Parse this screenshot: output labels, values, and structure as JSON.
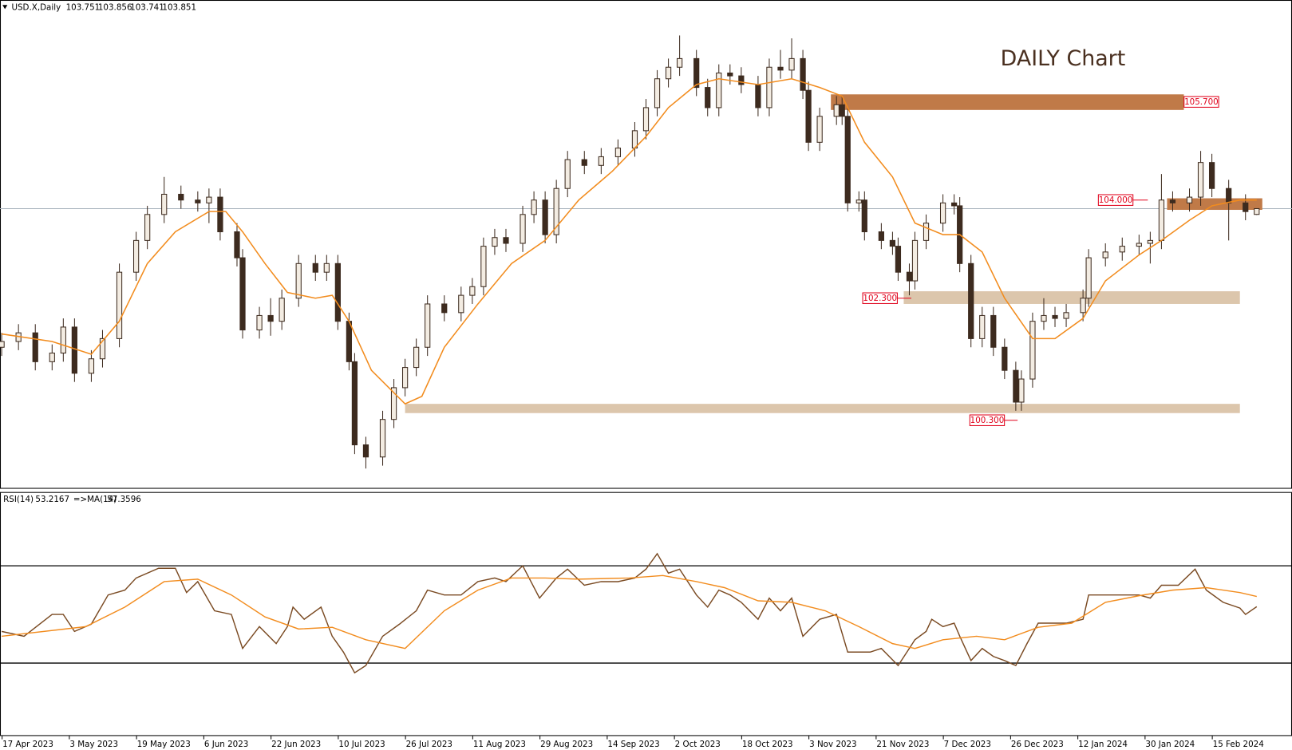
{
  "chart_data": [
    {
      "type": "candlestick",
      "symbol": "USD.X,Daily",
      "last_ohlc": [
        103.751,
        103.856,
        103.741,
        103.851
      ],
      "annotation": "DAILY Chart",
      "xlim": [
        -0.3,
        230.3
      ],
      "ylim": [
        99.0,
        107.45
      ],
      "up_color": "#f3ece2",
      "down_color": "#3d2b1f",
      "line_color": "#a9b4bd",
      "x": [
        0,
        3,
        6,
        9,
        11,
        13,
        16,
        18,
        21,
        24,
        26,
        29,
        32,
        35,
        37,
        39,
        42,
        43,
        46,
        48,
        50,
        53,
        56,
        58,
        60,
        62,
        63,
        65,
        68,
        70,
        72,
        74,
        76,
        79,
        82,
        84,
        86,
        88,
        90,
        93,
        95,
        97,
        99,
        101,
        104,
        107,
        110,
        113,
        115,
        117,
        119,
        121,
        124,
        126,
        128,
        130,
        132,
        135,
        137,
        139,
        141,
        143,
        144,
        146,
        149,
        150,
        151,
        153,
        154,
        157,
        159,
        160,
        162,
        163,
        165,
        168,
        170,
        171,
        173,
        175,
        177,
        179,
        181,
        182,
        184,
        186,
        188,
        190,
        193,
        194,
        197,
        200,
        203,
        205,
        207,
        209,
        212,
        214,
        216,
        219,
        222,
        224
      ],
      "open": [
        101.45,
        101.55,
        101.7,
        101.2,
        101.35,
        101.8,
        101.0,
        101.25,
        101.6,
        102.75,
        103.3,
        103.75,
        104.1,
        104.0,
        103.95,
        104.05,
        103.45,
        103.0,
        101.75,
        102.0,
        101.9,
        102.3,
        102.9,
        102.75,
        102.9,
        101.9,
        101.2,
        99.76,
        99.55,
        100.2,
        100.75,
        101.1,
        101.45,
        102.2,
        102.05,
        102.35,
        102.5,
        103.2,
        103.35,
        103.25,
        103.75,
        104.0,
        103.4,
        104.2,
        104.7,
        104.6,
        104.75,
        104.9,
        105.2,
        105.6,
        106.1,
        106.3,
        106.45,
        105.95,
        105.6,
        106.2,
        106.15,
        106.0,
        105.6,
        106.3,
        106.25,
        106.45,
        105.9,
        105.0,
        105.45,
        105.65,
        105.45,
        103.95,
        104.0,
        103.45,
        103.3,
        103.2,
        102.75,
        102.6,
        103.3,
        103.6,
        103.95,
        103.9,
        102.9,
        101.6,
        102.0,
        101.45,
        101.05,
        100.5,
        100.9,
        101.9,
        102.0,
        101.95,
        102.05,
        102.3,
        103.0,
        103.1,
        103.2,
        103.25,
        103.3,
        104.0,
        103.95,
        104.05,
        104.65,
        104.2,
        103.95,
        103.751
      ],
      "high": [
        101.7,
        101.85,
        101.85,
        101.5,
        101.95,
        101.95,
        101.4,
        101.75,
        102.9,
        103.45,
        103.9,
        104.4,
        104.25,
        104.15,
        104.2,
        104.2,
        103.6,
        103.15,
        102.15,
        102.3,
        102.45,
        103.05,
        103.05,
        103.05,
        103.05,
        102.05,
        101.35,
        99.9,
        100.35,
        100.9,
        101.25,
        101.6,
        102.35,
        102.35,
        102.5,
        102.65,
        103.35,
        103.5,
        103.5,
        103.9,
        104.15,
        104.15,
        104.35,
        104.85,
        104.85,
        104.9,
        105.05,
        105.35,
        105.75,
        106.25,
        106.45,
        106.85,
        106.6,
        106.1,
        106.35,
        106.35,
        106.3,
        106.15,
        106.45,
        106.6,
        106.8,
        106.6,
        106.05,
        105.6,
        105.8,
        105.8,
        105.6,
        104.15,
        104.15,
        103.6,
        103.45,
        103.35,
        102.9,
        103.45,
        103.75,
        104.1,
        104.1,
        104.05,
        103.05,
        102.15,
        102.15,
        101.6,
        101.2,
        101.05,
        102.05,
        102.3,
        102.15,
        102.2,
        102.45,
        103.15,
        103.25,
        103.35,
        103.4,
        103.45,
        104.45,
        104.15,
        104.2,
        104.85,
        104.8,
        104.35,
        104.1,
        103.856
      ],
      "low": [
        101.3,
        101.4,
        101.05,
        101.05,
        101.2,
        100.85,
        100.85,
        101.1,
        101.45,
        102.6,
        103.15,
        103.6,
        103.85,
        103.8,
        103.6,
        103.3,
        102.85,
        101.6,
        101.6,
        101.65,
        101.75,
        102.15,
        102.6,
        102.6,
        101.75,
        101.05,
        99.6,
        99.35,
        99.4,
        100.05,
        100.6,
        100.95,
        101.3,
        101.9,
        101.9,
        102.2,
        102.35,
        103.05,
        103.1,
        103.1,
        103.6,
        103.25,
        103.25,
        104.05,
        104.45,
        104.45,
        104.6,
        104.75,
        105.05,
        105.45,
        105.95,
        106.15,
        105.8,
        105.45,
        105.45,
        106.0,
        105.85,
        105.45,
        105.45,
        106.1,
        106.1,
        105.75,
        104.85,
        104.85,
        105.3,
        105.3,
        103.8,
        103.8,
        103.3,
        103.15,
        103.05,
        102.6,
        102.35,
        102.45,
        103.15,
        103.45,
        103.75,
        102.75,
        101.45,
        101.45,
        101.3,
        100.9,
        100.35,
        100.35,
        100.75,
        101.75,
        101.8,
        101.8,
        101.9,
        102.15,
        102.85,
        102.95,
        103.05,
        102.9,
        103.15,
        103.8,
        103.8,
        103.9,
        104.05,
        103.3,
        103.65,
        103.741
      ],
      "close": [
        101.55,
        101.7,
        101.2,
        101.35,
        101.8,
        101.0,
        101.25,
        101.6,
        102.75,
        103.3,
        103.75,
        104.1,
        104.0,
        103.95,
        104.05,
        103.45,
        103.0,
        101.75,
        102.0,
        101.9,
        102.3,
        102.9,
        102.75,
        102.9,
        101.9,
        101.2,
        99.76,
        99.55,
        100.2,
        100.75,
        101.1,
        101.45,
        102.2,
        102.05,
        102.35,
        102.5,
        103.2,
        103.35,
        103.25,
        103.75,
        104.0,
        103.4,
        104.2,
        104.7,
        104.6,
        104.75,
        104.9,
        105.2,
        105.6,
        106.1,
        106.3,
        106.45,
        105.95,
        105.6,
        106.2,
        106.15,
        106.0,
        105.6,
        106.3,
        106.25,
        106.45,
        105.9,
        105.0,
        105.45,
        105.65,
        105.45,
        103.95,
        104.0,
        103.45,
        103.3,
        103.2,
        102.75,
        102.6,
        103.3,
        103.6,
        103.95,
        103.9,
        102.9,
        101.6,
        102.0,
        101.45,
        101.05,
        100.5,
        100.9,
        101.9,
        102.0,
        101.95,
        102.05,
        102.3,
        103.0,
        103.1,
        103.2,
        103.25,
        103.3,
        104.0,
        103.95,
        104.05,
        104.65,
        104.2,
        103.95,
        103.8,
        103.851
      ],
      "ma": {
        "color": "#f28c1e",
        "x": [
          0,
          9,
          16,
          21,
          26,
          31,
          37,
          40,
          43,
          47,
          51,
          56,
          59,
          62,
          66,
          72,
          75,
          79,
          85,
          91,
          97,
          103,
          109,
          115,
          119,
          124,
          128,
          135,
          141,
          146,
          150,
          154,
          159,
          163,
          168,
          171,
          175,
          179,
          184,
          188,
          193,
          197,
          203,
          207,
          212,
          216,
          221,
          224
        ],
        "values": [
          101.68,
          101.55,
          101.33,
          101.9,
          102.9,
          103.45,
          103.8,
          103.8,
          103.45,
          102.9,
          102.4,
          102.3,
          102.35,
          101.9,
          101.05,
          100.47,
          100.6,
          101.45,
          102.2,
          102.9,
          103.3,
          104.0,
          104.5,
          105.1,
          105.6,
          106.0,
          106.1,
          106.0,
          106.1,
          105.95,
          105.8,
          105.0,
          104.4,
          103.6,
          103.4,
          103.4,
          103.1,
          102.3,
          101.6,
          101.6,
          101.95,
          102.6,
          103.05,
          103.3,
          103.65,
          103.9,
          104.0,
          104.0
        ]
      },
      "zones": [
        {
          "label": {
            "value": 105.7,
            "label": "105.700"
          },
          "top": 105.83,
          "bottom": 105.56,
          "from": 148,
          "to": 211,
          "color": "#c07a48"
        },
        {
          "label": {
            "value": 104.0,
            "label": "104.000"
          },
          "top": 104.03,
          "bottom": 103.83,
          "from": 208,
          "to": 225,
          "color": "#c07a48"
        },
        {
          "label": {
            "value": 102.3,
            "label": "102.300"
          },
          "top": 102.42,
          "bottom": 102.2,
          "from": 161,
          "to": 221,
          "color": "#dcc6ac"
        },
        {
          "label": {
            "value": 100.3,
            "label": "100.300"
          },
          "top": 100.47,
          "bottom": 100.31,
          "from": 72,
          "to": 221,
          "color": "#dcc6ac"
        }
      ]
    },
    {
      "type": "line",
      "indicator": "RSI(14)",
      "indicator_value": 53.2167,
      "ma_name": "=>MA(14)",
      "ma_value": 57.3596,
      "xlim": [
        -0.3,
        230.3
      ],
      "ylim": [
        0,
        100
      ],
      "levels": [
        70,
        30
      ],
      "xticks": [
        {
          "value": 0,
          "label": "17 Apr 2023"
        },
        {
          "value": 12,
          "label": "3 May 2023"
        },
        {
          "value": 24,
          "label": "19 May 2023"
        },
        {
          "value": 36,
          "label": "6 Jun 2023"
        },
        {
          "value": 48,
          "label": "22 Jun 2023"
        },
        {
          "value": 60,
          "label": "10 Jul 2023"
        },
        {
          "value": 72,
          "label": "26 Jul 2023"
        },
        {
          "value": 84,
          "label": "11 Aug 2023"
        },
        {
          "value": 96,
          "label": "29 Aug 2023"
        },
        {
          "value": 108,
          "label": "14 Sep 2023"
        },
        {
          "value": 120,
          "label": "2 Oct 2023"
        },
        {
          "value": 132,
          "label": "18 Oct 2023"
        },
        {
          "value": 144,
          "label": "3 Nov 2023"
        },
        {
          "value": 156,
          "label": "21 Nov 2023"
        },
        {
          "value": 168,
          "label": "7 Dec 2023"
        },
        {
          "value": 180,
          "label": "26 Dec 2023"
        },
        {
          "value": 192,
          "label": "12 Jan 2024"
        },
        {
          "value": 204,
          "label": "30 Jan 2024"
        },
        {
          "value": 216,
          "label": "15 Feb 2024"
        }
      ],
      "series": [
        {
          "color": "#7a4a22",
          "x": [
            0,
            4,
            9,
            11,
            13,
            16,
            19,
            22,
            24,
            28,
            31,
            33,
            35,
            38,
            41,
            43,
            46,
            49,
            51,
            52,
            54,
            57,
            59,
            61,
            63,
            65,
            68,
            71,
            74,
            76,
            79,
            82,
            85,
            88,
            90,
            93,
            96,
            99,
            101,
            104,
            107,
            110,
            113,
            115,
            117,
            119,
            121,
            124,
            126,
            128,
            130,
            132,
            135,
            137,
            139,
            141,
            143,
            146,
            149,
            151,
            153,
            155,
            157,
            160,
            163,
            165,
            166,
            168,
            170,
            171,
            173,
            175,
            177,
            179,
            181,
            183,
            185,
            188,
            190,
            193,
            194,
            197,
            200,
            203,
            205,
            207,
            210,
            213,
            215,
            218,
            221,
            222,
            224
          ],
          "values": [
            43,
            41,
            50,
            50,
            43,
            46,
            58,
            60,
            65,
            69,
            69,
            59,
            63.5,
            51.5,
            50,
            36,
            45,
            38,
            45,
            53,
            48,
            53,
            41,
            34.5,
            26,
            29,
            41,
            46,
            51.5,
            60,
            58,
            58,
            63.5,
            65,
            63.5,
            70,
            56.7,
            65,
            68.6,
            62,
            63.5,
            63.5,
            65,
            68.6,
            75,
            67,
            68.6,
            58,
            53,
            60,
            58,
            55,
            48,
            56.7,
            51.5,
            56.7,
            41,
            48,
            50,
            34.5,
            34.5,
            34.5,
            36,
            29,
            39.6,
            43,
            48,
            45,
            46.4,
            41,
            31,
            36,
            32.7,
            31,
            29,
            38,
            46.4,
            46.4,
            46.4,
            48,
            58,
            58,
            58,
            58,
            56.7,
            62,
            62,
            68.6,
            60,
            55,
            52.6,
            50,
            53.2
          ]
        },
        {
          "color": "#f28c1e",
          "x": [
            0,
            15,
            22,
            29,
            35,
            41,
            47,
            53,
            59,
            65,
            72,
            79,
            85,
            91,
            97,
            103,
            112,
            118,
            124,
            129,
            135,
            141,
            147,
            153,
            159,
            163,
            168,
            174,
            179,
            185,
            191,
            197,
            203,
            209,
            215,
            221,
            224
          ],
          "values": [
            41,
            45,
            53,
            63.5,
            64.5,
            58,
            49,
            44,
            44.7,
            39.6,
            36,
            51.5,
            60,
            65,
            65,
            64.5,
            65,
            66,
            63.5,
            61,
            55.6,
            55,
            51.5,
            45,
            38,
            36,
            39.6,
            41,
            39.6,
            44.7,
            46.4,
            55,
            57.7,
            60,
            61,
            59,
            57.4
          ]
        }
      ]
    }
  ]
}
